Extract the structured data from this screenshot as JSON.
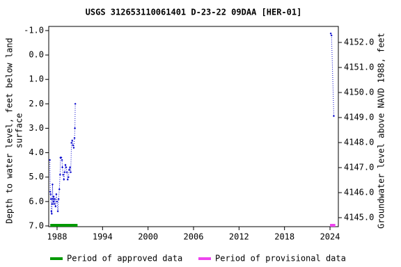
{
  "chart_data": {
    "type": "scatter",
    "title": "USGS 312653110061401 D-23-22 09DAA [HER-01]",
    "ylabel": [
      "Depth to water level, feet below land",
      "surface"
    ],
    "y2label": "Groundwater level above NAVD 1988, feet",
    "x": [
      1987.05,
      1987.1,
      1987.15,
      1987.2,
      1987.25,
      1987.3,
      1987.35,
      1987.4,
      1987.45,
      1987.5,
      1987.55,
      1987.6,
      1987.7,
      1987.8,
      1987.9,
      1988.0,
      1988.1,
      1988.2,
      1988.3,
      1988.4,
      1988.45,
      1988.55,
      1988.65,
      1988.7,
      1988.8,
      1988.9,
      1989.0,
      1989.1,
      1989.2,
      1989.3,
      1989.4,
      1989.5,
      1989.6,
      1989.7,
      1989.8,
      1989.9,
      1990.0,
      1990.1,
      1990.2,
      1990.3,
      1990.35,
      1990.4,
      null,
      2024.1,
      2024.2,
      2024.5
    ],
    "series": [
      {
        "color": "#0000cc",
        "values": [
          4.3,
          5.6,
          5.7,
          5.9,
          6.4,
          6.5,
          6.1,
          5.3,
          5.9,
          6.0,
          5.8,
          6.1,
          5.9,
          6.2,
          5.7,
          6.0,
          6.4,
          5.9,
          5.5,
          4.9,
          4.2,
          4.2,
          4.3,
          4.6,
          4.9,
          5.1,
          4.8,
          4.5,
          4.6,
          4.8,
          5.1,
          5.0,
          4.7,
          4.6,
          4.8,
          3.6,
          3.5,
          3.7,
          3.8,
          3.4,
          3.0,
          2.0,
          null,
          -0.88,
          -0.8,
          2.5
        ]
      }
    ],
    "xlim": [
      1986.9,
      2025.1
    ],
    "xticks": [
      1988,
      1994,
      2000,
      2006,
      2012,
      2018,
      2024
    ],
    "ylim": [
      7.03,
      -1.17
    ],
    "yticks": [
      {
        "value": -1.0,
        "label": "-1.0"
      },
      {
        "value": 0.0,
        "label": "0.0"
      },
      {
        "value": 1.0,
        "label": "1.0"
      },
      {
        "value": 2.0,
        "label": "2.0"
      },
      {
        "value": 3.0,
        "label": "3.0"
      },
      {
        "value": 4.0,
        "label": "4.0"
      },
      {
        "value": 5.0,
        "label": "5.0"
      },
      {
        "value": 6.0,
        "label": "6.0"
      },
      {
        "value": 7.0,
        "label": "7.0"
      }
    ],
    "y2lim": [
      4144.64,
      4152.64
    ],
    "y2ticks": [
      {
        "value": 4145,
        "label": "4145.0"
      },
      {
        "value": 4146,
        "label": "4146.0"
      },
      {
        "value": 4147,
        "label": "4147.0"
      },
      {
        "value": 4148,
        "label": "4148.0"
      },
      {
        "value": 4149,
        "label": "4149.0"
      },
      {
        "value": 4150,
        "label": "4150.0"
      },
      {
        "value": 4151,
        "label": "4151.0"
      },
      {
        "value": 4152,
        "label": "4152.0"
      }
    ],
    "periods": [
      {
        "name": "Period of approved data",
        "color": "#009900",
        "start": 1987.1,
        "end": 1990.7
      },
      {
        "name": "Period of provisional data",
        "color": "#ee44ee",
        "start": 2024.0,
        "end": 2024.7
      }
    ]
  }
}
